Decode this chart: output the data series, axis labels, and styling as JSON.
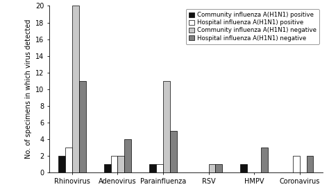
{
  "categories": [
    "Rhinovirus",
    "Adenovirus",
    "Parainfluenza",
    "RSV",
    "HMPV",
    "Coronavirus"
  ],
  "series": {
    "Community influenza A(H1N1) positive": [
      2,
      1,
      1,
      0,
      1,
      0
    ],
    "Hospital influenza A(H1N1) positive": [
      3,
      2,
      1,
      0,
      0,
      2
    ],
    "Community influenza A(H1N1) negative": [
      20,
      2,
      11,
      1,
      0,
      0
    ],
    "Hospital influenza A(H1N1) negative": [
      11,
      4,
      5,
      1,
      3,
      2
    ]
  },
  "colors": [
    "#111111",
    "#ffffff",
    "#c8c8c8",
    "#808080"
  ],
  "edge_colors": [
    "#000000",
    "#000000",
    "#000000",
    "#000000"
  ],
  "ylabel": "No. of specimens in which virus detected",
  "ylim": [
    0,
    20
  ],
  "yticks": [
    0,
    2,
    4,
    6,
    8,
    10,
    12,
    14,
    16,
    18,
    20
  ],
  "legend_labels": [
    "Community influenza A(H1N1) positive",
    "Hospital influenza A(H1N1) positive",
    "Community influenza A(H1N1) negative",
    "Hospital influenza A(H1N1) negative"
  ],
  "bar_width": 0.15,
  "fontsize": 7,
  "legend_fontsize": 6.2,
  "ylabel_fontsize": 7
}
